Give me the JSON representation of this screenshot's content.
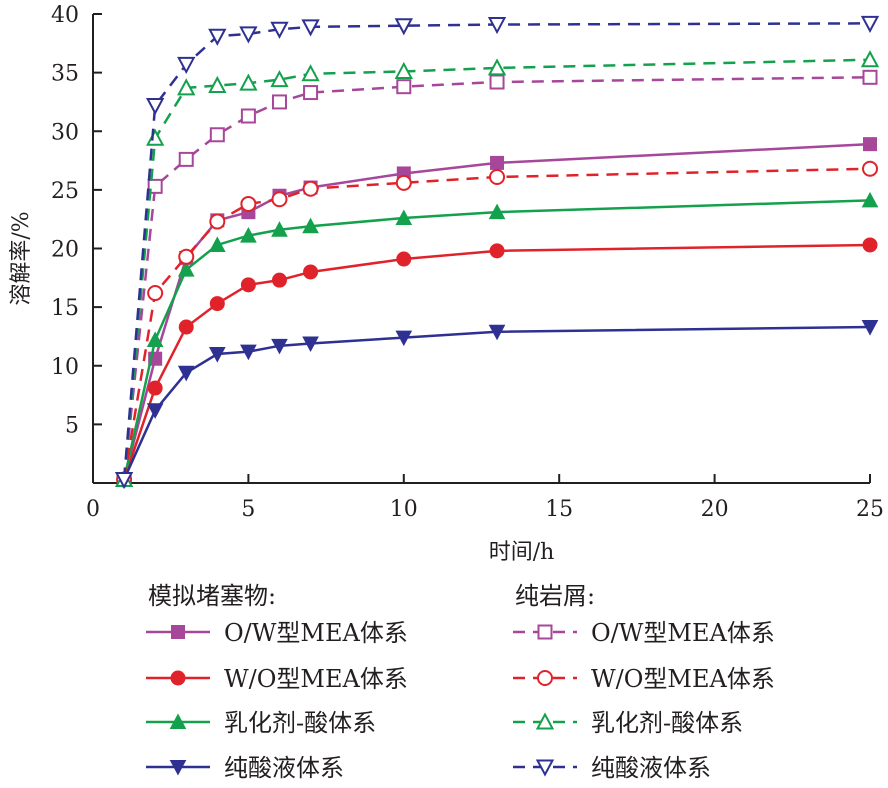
{
  "chart_data": {
    "type": "line",
    "xlabel": "时间/h",
    "ylabel": "溶解率/%",
    "xlim": [
      0,
      25
    ],
    "ylim": [
      0,
      40
    ],
    "xticks": [
      0,
      5,
      10,
      15,
      20,
      25
    ],
    "yticks": [
      5,
      10,
      15,
      20,
      25,
      30,
      35,
      40
    ],
    "grid": false,
    "legend": {
      "placement": "bottom",
      "group_titles": [
        "模拟堵塞物:",
        "纯岩屑:"
      ]
    },
    "series": [
      {
        "name": "O/W型MEA体系",
        "group": "模拟堵塞物",
        "color": "#a6479a",
        "marker": "square",
        "filled": true,
        "dashed": false,
        "x": [
          1,
          2,
          3,
          4,
          5,
          6,
          7,
          10,
          13,
          25
        ],
        "y": [
          0.3,
          10.6,
          19.2,
          22.4,
          23.1,
          24.5,
          25.2,
          26.4,
          27.3,
          28.9
        ]
      },
      {
        "name": "W/O型MEA体系",
        "group": "模拟堵塞物",
        "color": "#e0232b",
        "marker": "circle",
        "filled": true,
        "dashed": false,
        "x": [
          1,
          2,
          3,
          4,
          5,
          6,
          7,
          10,
          13,
          25
        ],
        "y": [
          0.3,
          8.1,
          13.3,
          15.3,
          16.9,
          17.3,
          18.0,
          19.1,
          19.8,
          20.3
        ]
      },
      {
        "name": "乳化剂-酸体系",
        "group": "模拟堵塞物",
        "color": "#14a14d",
        "marker": "triangle-up",
        "filled": true,
        "dashed": false,
        "x": [
          1,
          2,
          3,
          4,
          5,
          6,
          7,
          10,
          13,
          25
        ],
        "y": [
          0.3,
          12.2,
          18.2,
          20.3,
          21.1,
          21.6,
          21.9,
          22.6,
          23.1,
          24.1
        ]
      },
      {
        "name": "纯酸液体系",
        "group": "模拟堵塞物",
        "color": "#2e3192",
        "marker": "triangle-down",
        "filled": true,
        "dashed": false,
        "x": [
          1,
          2,
          3,
          4,
          5,
          6,
          7,
          10,
          13,
          25
        ],
        "y": [
          0.3,
          6.2,
          9.4,
          11.0,
          11.2,
          11.7,
          11.9,
          12.4,
          12.9,
          13.3
        ]
      },
      {
        "name": "O/W型MEA体系",
        "group": "纯岩屑",
        "color": "#a6479a",
        "marker": "square",
        "filled": false,
        "dashed": true,
        "x": [
          1,
          2,
          3,
          4,
          5,
          6,
          7,
          10,
          13,
          25
        ],
        "y": [
          0.3,
          25.3,
          27.6,
          29.7,
          31.3,
          32.5,
          33.3,
          33.8,
          34.2,
          34.6
        ]
      },
      {
        "name": "W/O型MEA体系",
        "group": "纯岩屑",
        "color": "#e0232b",
        "marker": "circle",
        "filled": false,
        "dashed": true,
        "x": [
          1,
          2,
          3,
          4,
          5,
          6,
          7,
          10,
          13,
          25
        ],
        "y": [
          0.3,
          16.2,
          19.3,
          22.3,
          23.8,
          24.2,
          25.1,
          25.6,
          26.1,
          26.8
        ]
      },
      {
        "name": "乳化剂-酸体系",
        "group": "纯岩屑",
        "color": "#14a14d",
        "marker": "triangle-up",
        "filled": false,
        "dashed": true,
        "x": [
          1,
          2,
          3,
          4,
          5,
          6,
          7,
          10,
          13,
          25
        ],
        "y": [
          0.3,
          29.4,
          33.7,
          33.9,
          34.1,
          34.4,
          34.9,
          35.1,
          35.4,
          36.1
        ]
      },
      {
        "name": "纯酸液体系",
        "group": "纯岩屑",
        "color": "#2e3192",
        "marker": "triangle-down",
        "filled": false,
        "dashed": true,
        "x": [
          1,
          2,
          3,
          4,
          5,
          6,
          7,
          10,
          13,
          25
        ],
        "y": [
          0.3,
          32.2,
          35.7,
          38.1,
          38.3,
          38.7,
          38.9,
          39.0,
          39.1,
          39.2
        ]
      }
    ]
  }
}
